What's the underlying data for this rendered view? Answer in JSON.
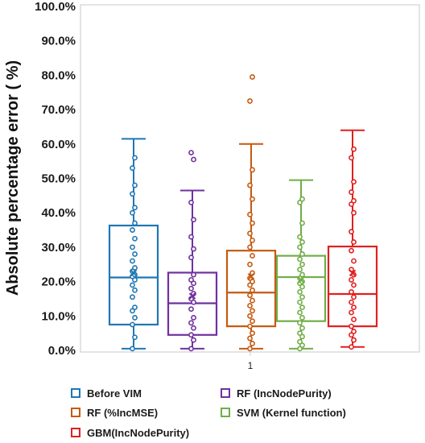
{
  "chart_data": {
    "type": "box",
    "title": "",
    "xlabel": "",
    "ylabel": "Absolute percentage error ( %)",
    "ylim": [
      0,
      100
    ],
    "yticks": [
      "0.0%",
      "10.0%",
      "20.0%",
      "30.0%",
      "40.0%",
      "50.0%",
      "60.0%",
      "70.0%",
      "80.0%",
      "90.0%",
      "100.0%"
    ],
    "categories": [
      "1"
    ],
    "grid": false,
    "legend_position": "bottom",
    "series": [
      {
        "name": "Before VIM",
        "color": "#1f77b4",
        "min": 0.5,
        "q1": 7.5,
        "median": 21.2,
        "q3": 36.3,
        "max": 61.5,
        "mean": 22.5,
        "points": [
          0.5,
          3.8,
          7.5,
          9.5,
          11.5,
          12.5,
          15.5,
          17.5,
          19.0,
          20.5,
          21.5,
          22.0,
          23.0,
          24.0,
          26.0,
          28.0,
          30.0,
          32.5,
          35.0,
          37.0,
          40.0,
          41.5,
          45.5,
          48.0,
          53.0,
          56.0
        ]
      },
      {
        "name": "RF (IncNodePurity)",
        "color": "#7030a0",
        "min": 0.5,
        "q1": 4.5,
        "median": 13.7,
        "q3": 22.6,
        "max": 46.5,
        "mean": 15.8,
        "points": [
          0.5,
          3.0,
          4.5,
          6.5,
          8.0,
          9.5,
          12.0,
          14.0,
          15.0,
          16.5,
          18.0,
          19.5,
          20.5,
          22.0,
          27.0,
          29.5,
          33.0,
          38.0,
          43.0,
          55.5,
          57.5
        ]
      },
      {
        "name": "RF (%IncMSE)",
        "color": "#c55a11",
        "min": 0.5,
        "q1": 7.0,
        "median": 16.8,
        "q3": 29.0,
        "max": 60.0,
        "mean": 21.5,
        "points": [
          0.5,
          2.0,
          3.5,
          5.0,
          7.0,
          8.5,
          10.0,
          11.5,
          13.0,
          14.5,
          16.0,
          17.5,
          19.0,
          20.0,
          21.0,
          22.5,
          25.0,
          27.5,
          30.0,
          32.0,
          34.0,
          37.0,
          39.5,
          44.0,
          48.0,
          52.5,
          72.5,
          79.5
        ]
      },
      {
        "name": "SVM (Kernel function)",
        "color": "#70ad47",
        "min": 0.5,
        "q1": 8.5,
        "median": 21.3,
        "q3": 27.5,
        "max": 49.5,
        "mean": 20.5,
        "points": [
          0.5,
          1.5,
          2.5,
          4.0,
          5.0,
          6.5,
          8.0,
          9.5,
          11.0,
          12.5,
          14.0,
          15.5,
          17.0,
          18.5,
          19.5,
          20.0,
          21.0,
          22.0,
          23.5,
          25.0,
          26.5,
          28.0,
          30.0,
          31.5,
          33.0,
          37.0,
          43.0,
          44.0
        ]
      },
      {
        "name": "GBM(IncNodePurity)",
        "color": "#e02020",
        "min": 1.0,
        "q1": 7.0,
        "median": 16.4,
        "q3": 30.2,
        "max": 64.0,
        "mean": 22.5,
        "points": [
          1.0,
          3.0,
          4.5,
          5.5,
          7.0,
          9.0,
          11.0,
          12.5,
          14.0,
          15.5,
          17.0,
          19.0,
          20.5,
          22.0,
          23.5,
          26.0,
          29.0,
          31.5,
          34.5,
          40.0,
          42.5,
          43.5,
          46.0,
          49.0,
          56.0,
          58.5
        ]
      }
    ]
  }
}
